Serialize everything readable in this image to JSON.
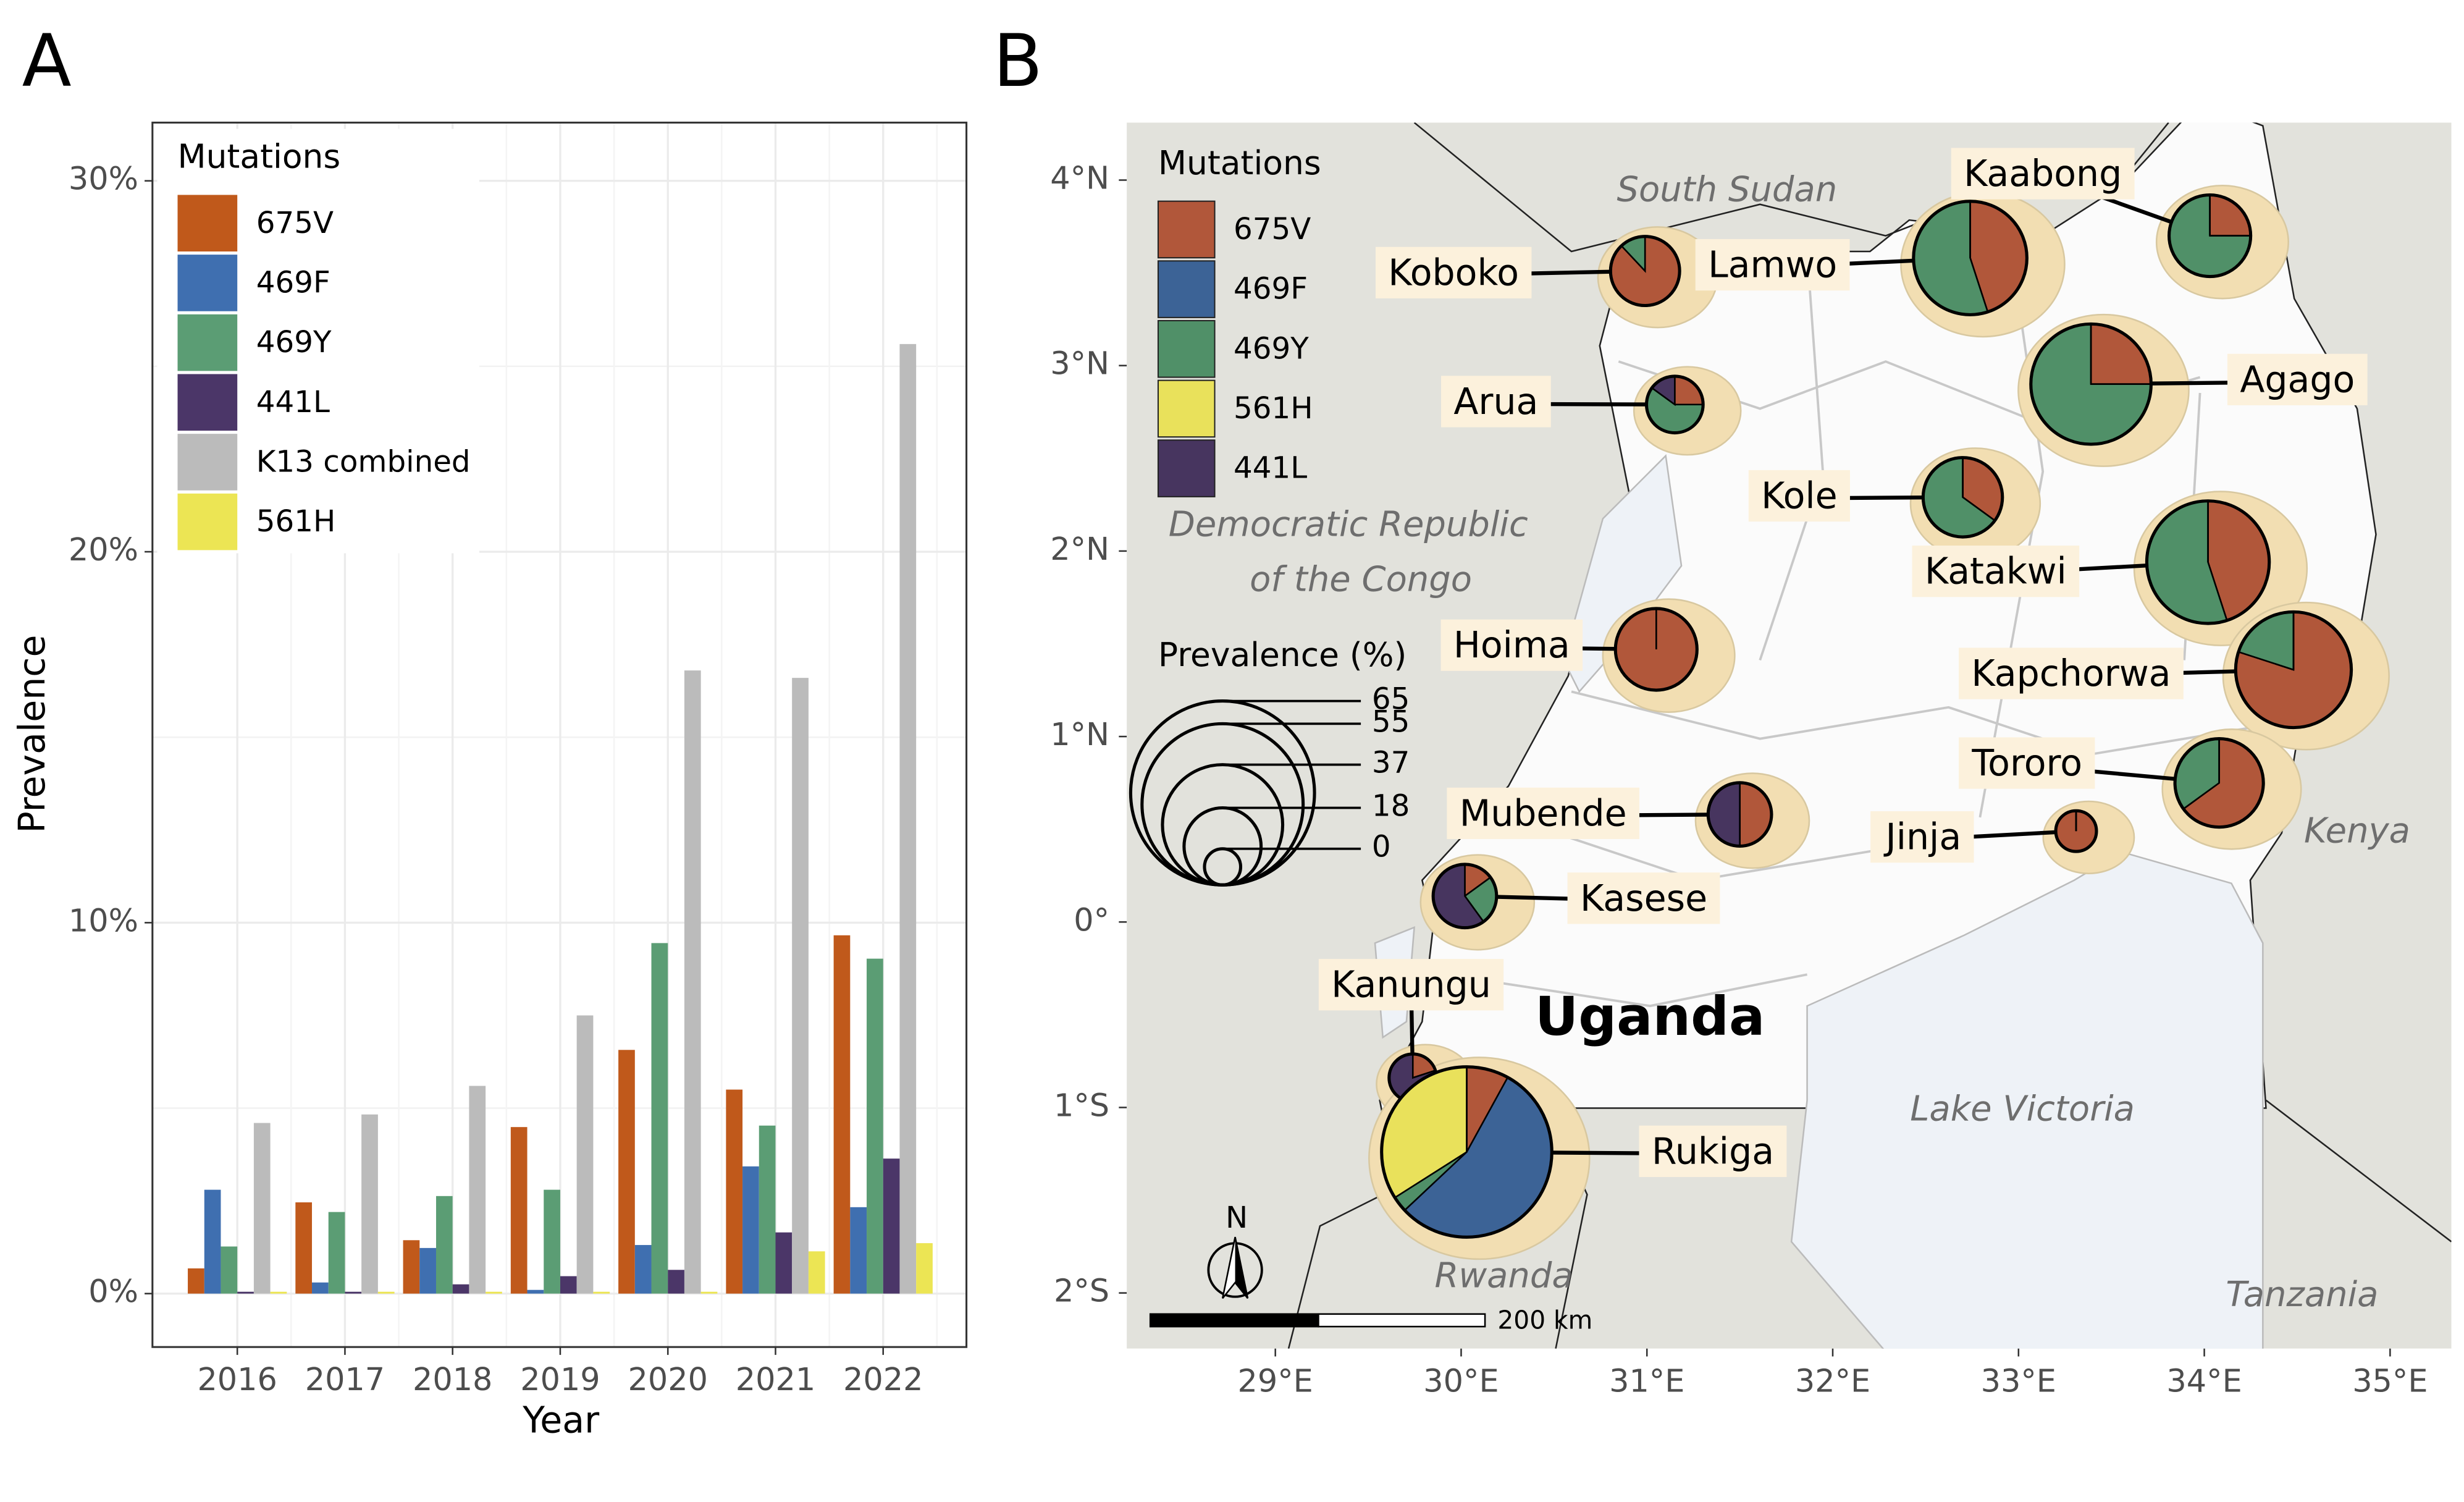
{
  "chart_data": [
    {
      "type": "bar",
      "label": "A",
      "x_label": "Year",
      "y_label": "Prevalence",
      "legend_title": "Mutations",
      "grid": true,
      "categories": [
        "2016",
        "2017",
        "2018",
        "2019",
        "2020",
        "2021",
        "2022"
      ],
      "series": [
        {
          "name": "675V",
          "color": "#c0591b",
          "values": [
            0.68,
            2.46,
            1.44,
            4.49,
            6.57,
            5.5,
            9.66
          ]
        },
        {
          "name": "469F",
          "color": "#3f6fb0",
          "values": [
            2.8,
            0.3,
            1.23,
            0.1,
            1.31,
            3.43,
            2.33
          ]
        },
        {
          "name": "469Y",
          "color": "#5b9d74",
          "values": [
            1.27,
            2.2,
            2.63,
            2.8,
            9.45,
            4.53,
            9.03
          ]
        },
        {
          "name": "441L",
          "color": "#4b3668",
          "values": [
            0.05,
            0.05,
            0.25,
            0.47,
            0.64,
            1.65,
            3.64
          ]
        },
        {
          "name": "K13 combined",
          "color": "#bbbbbb",
          "values": [
            4.6,
            4.83,
            5.6,
            7.5,
            16.8,
            16.6,
            25.6
          ]
        },
        {
          "name": "561H",
          "color": "#ece554",
          "values": [
            0.05,
            0.05,
            0.05,
            0.05,
            0.05,
            1.14,
            1.36
          ]
        }
      ],
      "ylim": [
        -1.44,
        31.57
      ],
      "yticks": [
        {
          "value": 0,
          "label": "0%"
        },
        {
          "value": 10,
          "label": "10%"
        },
        {
          "value": 20,
          "label": "20%"
        },
        {
          "value": 30,
          "label": "30%"
        }
      ],
      "yminor": [
        5,
        15,
        25
      ]
    },
    {
      "type": "map",
      "label": "B",
      "legend_title": "Mutations",
      "xlim": [
        28.2,
        35.33
      ],
      "ylim": [
        -2.3,
        4.31
      ],
      "xticks": [
        {
          "value": 29,
          "label": "29°E"
        },
        {
          "value": 30,
          "label": "30°E"
        },
        {
          "value": 31,
          "label": "31°E"
        },
        {
          "value": 32,
          "label": "32°E"
        },
        {
          "value": 33,
          "label": "33°E"
        },
        {
          "value": 34,
          "label": "34°E"
        },
        {
          "value": 35,
          "label": "35°E"
        }
      ],
      "yticks": [
        {
          "value": 4,
          "label": "4°N"
        },
        {
          "value": 3,
          "label": "3°N"
        },
        {
          "value": 2,
          "label": "2°N"
        },
        {
          "value": 1,
          "label": "1°N"
        },
        {
          "value": 0,
          "label": "0°"
        },
        {
          "value": -1,
          "label": "1°S"
        },
        {
          "value": -2,
          "label": "2°S"
        }
      ],
      "mutations": [
        {
          "name": "675V",
          "color": "#b1573a"
        },
        {
          "name": "469F",
          "color": "#3c6396"
        },
        {
          "name": "469Y",
          "color": "#509068"
        },
        {
          "name": "561H",
          "color": "#e9e15b"
        },
        {
          "name": "441L",
          "color": "#47355f"
        }
      ],
      "size_legend": {
        "title": "Prevalence (%)",
        "values": [
          65,
          55,
          37,
          18,
          0
        ]
      },
      "districts": [
        {
          "name": "Koboko",
          "lon": 30.99,
          "lat": 3.51,
          "prevalence": 14.5,
          "slices": [
            88,
            0,
            12,
            0,
            0
          ]
        },
        {
          "name": "Lamwo",
          "lon": 32.74,
          "lat": 3.58,
          "prevalence": 34,
          "slices": [
            45,
            0,
            55,
            0,
            0
          ]
        },
        {
          "name": "Kaabong",
          "lon": 34.03,
          "lat": 3.7,
          "prevalence": 20,
          "slices": [
            25,
            0,
            75,
            0,
            0
          ]
        },
        {
          "name": "Arua",
          "lon": 31.15,
          "lat": 2.79,
          "prevalence": 9,
          "slices": [
            25,
            0,
            60,
            0,
            15
          ]
        },
        {
          "name": "Agago",
          "lon": 33.39,
          "lat": 2.9,
          "prevalence": 37,
          "slices": [
            25,
            0,
            75,
            0,
            0
          ]
        },
        {
          "name": "Kole",
          "lon": 32.7,
          "lat": 2.29,
          "prevalence": 19,
          "slices": [
            35,
            0,
            65,
            0,
            0
          ]
        },
        {
          "name": "Katakwi",
          "lon": 34.02,
          "lat": 1.94,
          "prevalence": 38,
          "slices": [
            45,
            0,
            55,
            0,
            0
          ]
        },
        {
          "name": "Hoima",
          "lon": 31.05,
          "lat": 1.47,
          "prevalence": 20,
          "slices": [
            100,
            0,
            0,
            0,
            0
          ]
        },
        {
          "name": "Kapchorwa",
          "lon": 34.48,
          "lat": 1.36,
          "prevalence": 35,
          "slices": [
            80,
            0,
            20,
            0,
            0
          ]
        },
        {
          "name": "Tororo",
          "lon": 34.08,
          "lat": 0.75,
          "prevalence": 23,
          "slices": [
            65,
            0,
            35,
            0,
            0
          ]
        },
        {
          "name": "Mubende",
          "lon": 31.5,
          "lat": 0.58,
          "prevalence": 12,
          "slices": [
            50,
            0,
            0,
            0,
            50
          ]
        },
        {
          "name": "Jinja",
          "lon": 33.31,
          "lat": 0.49,
          "prevalence": 2,
          "slices": [
            100,
            0,
            0,
            0,
            0
          ]
        },
        {
          "name": "Kasese",
          "lon": 30.02,
          "lat": 0.14,
          "prevalence": 12,
          "slices": [
            15,
            0,
            25,
            0,
            60
          ]
        },
        {
          "name": "Kanungu",
          "lon": 29.74,
          "lat": -0.84,
          "prevalence": 5,
          "slices": [
            20,
            0,
            0,
            0,
            80
          ]
        },
        {
          "name": "Rukiga",
          "lon": 30.03,
          "lat": -1.24,
          "prevalence": 59,
          "slices": [
            8,
            55,
            3,
            34,
            0
          ]
        }
      ],
      "country": "Uganda",
      "places": [
        "South Sudan",
        "Democratic Republic",
        "of the Congo",
        "Kenya",
        "Rwanda",
        "Tanzania",
        "Lake Victoria"
      ],
      "scale_bar": "200 km",
      "north": "N"
    }
  ]
}
